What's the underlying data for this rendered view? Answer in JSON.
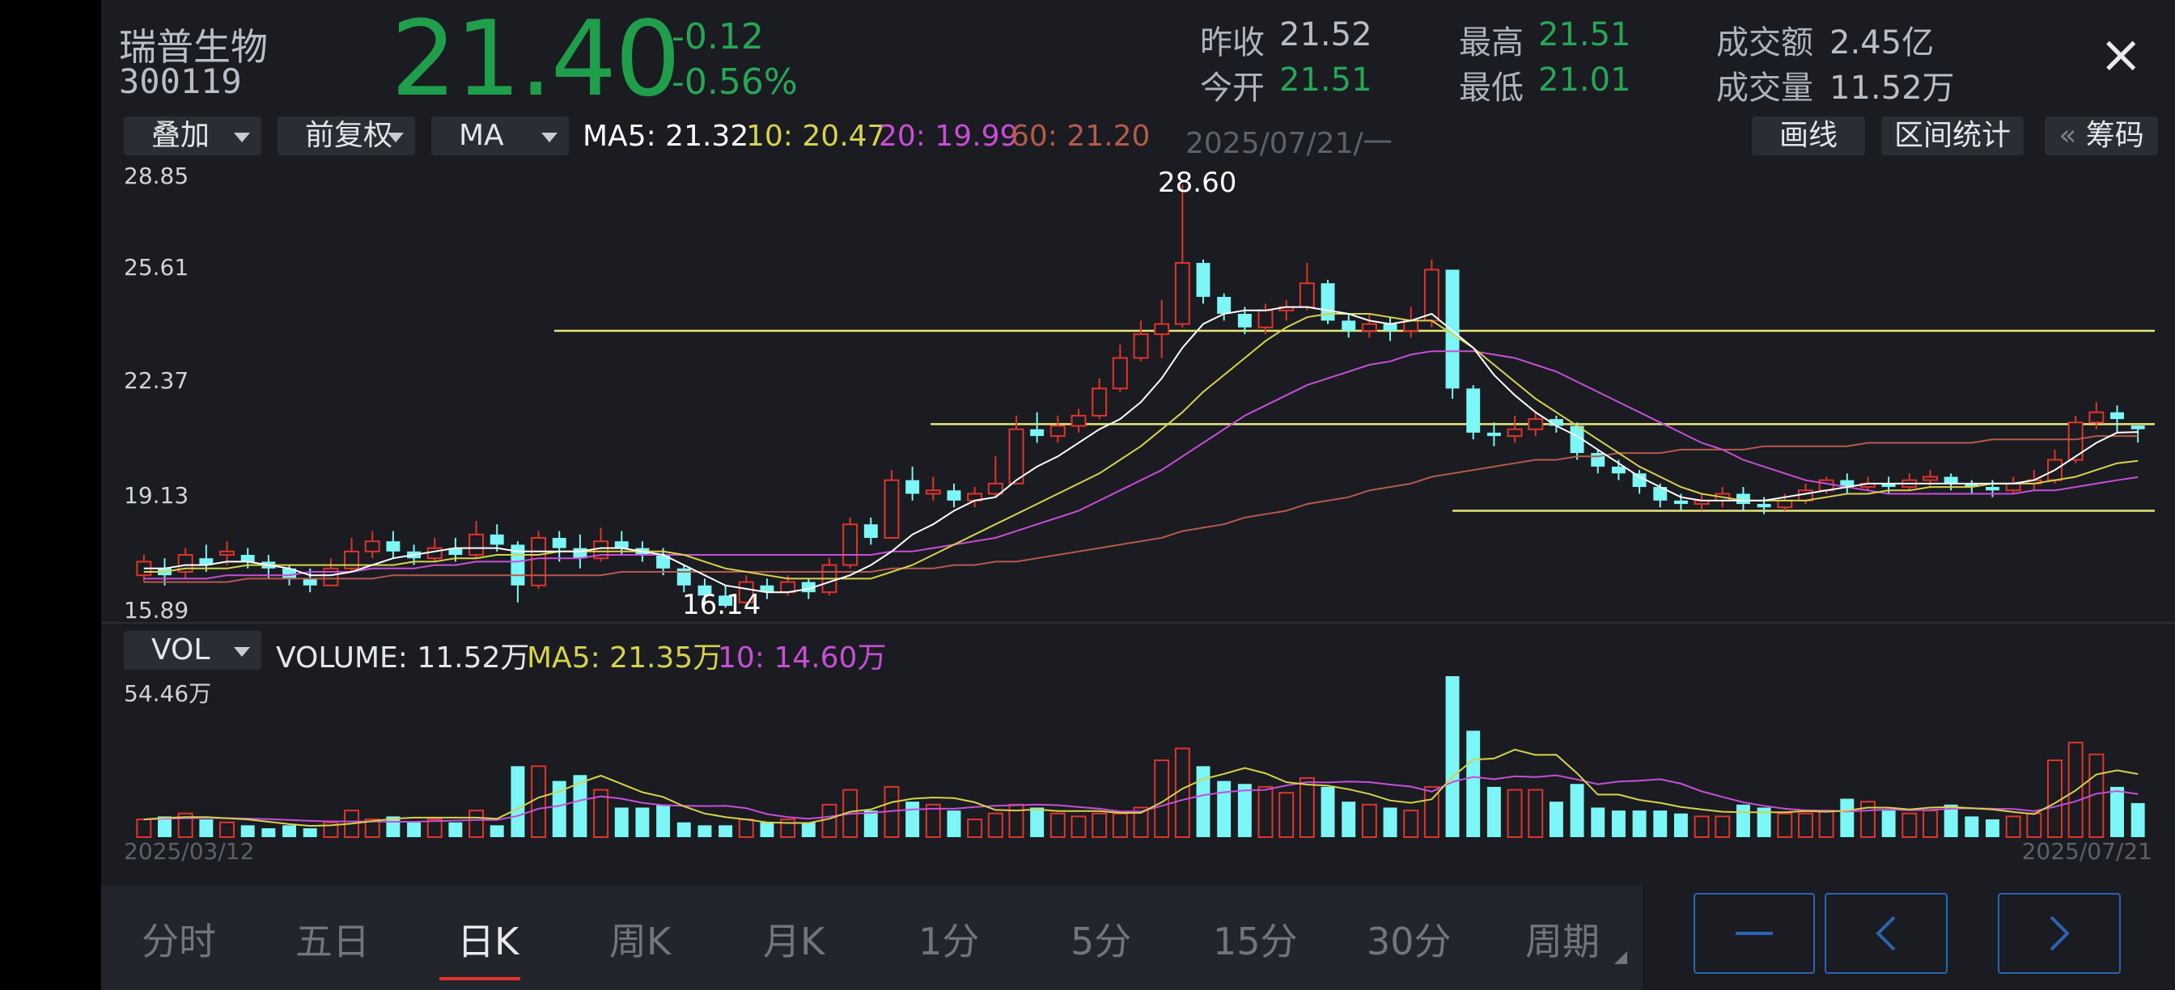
{
  "header": {
    "stock_name": "瑞普生物",
    "stock_code": "300119",
    "price": "21.40",
    "change": "-0.12",
    "change_pct": "-0.56%",
    "stats": [
      {
        "key": "昨收",
        "value": "21.52",
        "color": "plain"
      },
      {
        "key": "今开",
        "value": "21.51",
        "color": "green"
      },
      {
        "key": "最高",
        "value": "21.51",
        "color": "green"
      },
      {
        "key": "最低",
        "value": "21.01",
        "color": "green"
      },
      {
        "key": "成交额",
        "value": "2.45亿",
        "color": "plain"
      },
      {
        "key": "成交量",
        "value": "11.52万",
        "color": "plain"
      }
    ],
    "close_icon": "×"
  },
  "toolbar": {
    "overlay": "叠加",
    "adjust": "前复权",
    "indicator": "MA",
    "ma5": "MA5: 21.32",
    "ma10": "10: 20.47",
    "ma20": "20: 19.99",
    "ma60": "60: 21.20",
    "date": "2025/07/21/一",
    "draw_line": "画线",
    "range_stats": "区间统计",
    "chips_arrow": "«",
    "chips": "筹码"
  },
  "price_axis": [
    "28.85",
    "25.61",
    "22.37",
    "19.13",
    "15.89"
  ],
  "annotations": {
    "high": "28.60",
    "low": "16.14"
  },
  "volume_bar": {
    "indicator": "VOL",
    "volume": "VOLUME: 11.52万",
    "ma5": "MA5: 21.35万",
    "ma10": "10: 14.60万",
    "axis_max": "54.46万"
  },
  "dates": {
    "start": "2025/03/12",
    "end": "2025/07/21"
  },
  "tabs": [
    "分时",
    "五日",
    "日K",
    "周K",
    "月K",
    "1分",
    "5分",
    "15分",
    "30分",
    "周期"
  ],
  "active_tab": 2,
  "nav_buttons": [
    "minus-button",
    "prev-button",
    "next-button"
  ],
  "colors": {
    "up": "#e0342b",
    "down": "#7cf6f6",
    "ma5": "#ffffff",
    "ma10": "#d8d24a",
    "ma20": "#c84ed8",
    "ma60": "#b65a4a",
    "price_green": "#1f9f4b",
    "level_line": "#e8e87a"
  },
  "chart_data": {
    "type": "candlestick",
    "ylim": [
      15.89,
      28.85
    ],
    "volume_ylim": [
      0,
      54.46
    ],
    "volume_unit": "万",
    "candles": [
      {
        "o": 17.1,
        "c": 17.5,
        "h": 17.7,
        "l": 16.9,
        "v": 6
      },
      {
        "o": 17.3,
        "c": 17.1,
        "h": 17.6,
        "l": 16.8,
        "v": 7
      },
      {
        "o": 17.2,
        "c": 17.7,
        "h": 17.9,
        "l": 17.0,
        "v": 8
      },
      {
        "o": 17.6,
        "c": 17.4,
        "h": 18.0,
        "l": 17.2,
        "v": 6
      },
      {
        "o": 17.7,
        "c": 17.8,
        "h": 18.1,
        "l": 17.4,
        "v": 5
      },
      {
        "o": 17.7,
        "c": 17.5,
        "h": 17.9,
        "l": 17.3,
        "v": 4
      },
      {
        "o": 17.5,
        "c": 17.3,
        "h": 17.7,
        "l": 17.0,
        "v": 3
      },
      {
        "o": 17.3,
        "c": 17.0,
        "h": 17.4,
        "l": 16.8,
        "v": 4
      },
      {
        "o": 17.0,
        "c": 16.8,
        "h": 17.3,
        "l": 16.6,
        "v": 3
      },
      {
        "o": 16.8,
        "c": 17.3,
        "h": 17.6,
        "l": 16.8,
        "v": 5
      },
      {
        "o": 17.3,
        "c": 17.8,
        "h": 18.2,
        "l": 17.2,
        "v": 9
      },
      {
        "o": 17.8,
        "c": 18.1,
        "h": 18.4,
        "l": 17.6,
        "v": 6
      },
      {
        "o": 18.1,
        "c": 17.8,
        "h": 18.4,
        "l": 17.6,
        "v": 7
      },
      {
        "o": 17.8,
        "c": 17.6,
        "h": 18.0,
        "l": 17.4,
        "v": 5
      },
      {
        "o": 17.6,
        "c": 17.9,
        "h": 18.2,
        "l": 17.5,
        "v": 6
      },
      {
        "o": 17.9,
        "c": 17.7,
        "h": 18.2,
        "l": 17.5,
        "v": 5
      },
      {
        "o": 17.7,
        "c": 18.3,
        "h": 18.7,
        "l": 17.6,
        "v": 9
      },
      {
        "o": 18.3,
        "c": 18.0,
        "h": 18.6,
        "l": 17.8,
        "v": 4
      },
      {
        "o": 18.0,
        "c": 16.8,
        "h": 18.1,
        "l": 16.3,
        "v": 24
      },
      {
        "o": 16.8,
        "c": 18.2,
        "h": 18.4,
        "l": 16.7,
        "v": 24
      },
      {
        "o": 18.2,
        "c": 17.9,
        "h": 18.4,
        "l": 17.5,
        "v": 19
      },
      {
        "o": 17.9,
        "c": 17.6,
        "h": 18.3,
        "l": 17.3,
        "v": 21
      },
      {
        "o": 17.6,
        "c": 18.1,
        "h": 18.5,
        "l": 17.5,
        "v": 16
      },
      {
        "o": 18.1,
        "c": 17.9,
        "h": 18.4,
        "l": 17.7,
        "v": 10
      },
      {
        "o": 17.9,
        "c": 17.7,
        "h": 18.1,
        "l": 17.5,
        "v": 10
      },
      {
        "o": 17.7,
        "c": 17.3,
        "h": 17.9,
        "l": 17.1,
        "v": 11
      },
      {
        "o": 17.3,
        "c": 16.8,
        "h": 17.4,
        "l": 16.6,
        "v": 5
      },
      {
        "o": 16.8,
        "c": 16.5,
        "h": 17.0,
        "l": 16.3,
        "v": 4
      },
      {
        "o": 16.5,
        "c": 16.2,
        "h": 16.8,
        "l": 16.14,
        "v": 4
      },
      {
        "o": 16.3,
        "c": 16.9,
        "h": 17.1,
        "l": 16.2,
        "v": 6
      },
      {
        "o": 16.8,
        "c": 16.6,
        "h": 17.0,
        "l": 16.4,
        "v": 5
      },
      {
        "o": 16.6,
        "c": 16.9,
        "h": 17.1,
        "l": 16.5,
        "v": 6
      },
      {
        "o": 16.9,
        "c": 16.6,
        "h": 17.0,
        "l": 16.4,
        "v": 5
      },
      {
        "o": 16.6,
        "c": 17.4,
        "h": 17.6,
        "l": 16.5,
        "v": 11
      },
      {
        "o": 17.4,
        "c": 18.6,
        "h": 18.8,
        "l": 17.3,
        "v": 16
      },
      {
        "o": 18.6,
        "c": 18.2,
        "h": 18.8,
        "l": 18.0,
        "v": 9
      },
      {
        "o": 18.2,
        "c": 19.9,
        "h": 20.2,
        "l": 18.2,
        "v": 17
      },
      {
        "o": 19.9,
        "c": 19.5,
        "h": 20.3,
        "l": 19.3,
        "v": 12
      },
      {
        "o": 19.5,
        "c": 19.6,
        "h": 20.0,
        "l": 19.3,
        "v": 11
      },
      {
        "o": 19.6,
        "c": 19.3,
        "h": 19.8,
        "l": 19.1,
        "v": 9
      },
      {
        "o": 19.3,
        "c": 19.5,
        "h": 19.7,
        "l": 19.1,
        "v": 6
      },
      {
        "o": 19.5,
        "c": 19.8,
        "h": 20.6,
        "l": 19.4,
        "v": 8
      },
      {
        "o": 19.8,
        "c": 21.4,
        "h": 21.8,
        "l": 19.8,
        "v": 11
      },
      {
        "o": 21.4,
        "c": 21.2,
        "h": 21.9,
        "l": 21.0,
        "v": 10
      },
      {
        "o": 21.2,
        "c": 21.5,
        "h": 21.8,
        "l": 21.0,
        "v": 8
      },
      {
        "o": 21.5,
        "c": 21.8,
        "h": 22.0,
        "l": 21.3,
        "v": 7
      },
      {
        "o": 21.8,
        "c": 22.6,
        "h": 22.9,
        "l": 21.7,
        "v": 8
      },
      {
        "o": 22.6,
        "c": 23.5,
        "h": 23.9,
        "l": 22.5,
        "v": 8
      },
      {
        "o": 23.5,
        "c": 24.2,
        "h": 24.6,
        "l": 23.4,
        "v": 10
      },
      {
        "o": 24.2,
        "c": 24.5,
        "h": 25.2,
        "l": 23.5,
        "v": 26
      },
      {
        "o": 24.5,
        "c": 26.3,
        "h": 28.6,
        "l": 24.4,
        "v": 30
      },
      {
        "o": 26.3,
        "c": 25.3,
        "h": 26.4,
        "l": 25.1,
        "v": 24
      },
      {
        "o": 25.3,
        "c": 24.8,
        "h": 25.4,
        "l": 24.6,
        "v": 19
      },
      {
        "o": 24.8,
        "c": 24.4,
        "h": 25.0,
        "l": 24.2,
        "v": 18
      },
      {
        "o": 24.4,
        "c": 24.9,
        "h": 25.1,
        "l": 24.2,
        "v": 17
      },
      {
        "o": 24.9,
        "c": 25.0,
        "h": 25.2,
        "l": 24.6,
        "v": 15
      },
      {
        "o": 25.0,
        "c": 25.7,
        "h": 26.3,
        "l": 24.9,
        "v": 20
      },
      {
        "o": 25.7,
        "c": 24.6,
        "h": 25.8,
        "l": 24.5,
        "v": 17
      },
      {
        "o": 24.6,
        "c": 24.3,
        "h": 24.8,
        "l": 24.1,
        "v": 12
      },
      {
        "o": 24.3,
        "c": 24.5,
        "h": 24.8,
        "l": 24.1,
        "v": 11
      },
      {
        "o": 24.5,
        "c": 24.3,
        "h": 24.7,
        "l": 24.0,
        "v": 10
      },
      {
        "o": 24.3,
        "c": 24.6,
        "h": 25.0,
        "l": 24.1,
        "v": 9
      },
      {
        "o": 24.6,
        "c": 26.1,
        "h": 26.4,
        "l": 24.4,
        "v": 17
      },
      {
        "o": 26.1,
        "c": 22.6,
        "h": 26.1,
        "l": 22.3,
        "v": 54.46
      },
      {
        "o": 22.6,
        "c": 21.3,
        "h": 22.7,
        "l": 21.1,
        "v": 36
      },
      {
        "o": 21.3,
        "c": 21.2,
        "h": 21.6,
        "l": 20.9,
        "v": 17
      },
      {
        "o": 21.2,
        "c": 21.4,
        "h": 21.8,
        "l": 21.0,
        "v": 16
      },
      {
        "o": 21.4,
        "c": 21.7,
        "h": 21.9,
        "l": 21.2,
        "v": 16
      },
      {
        "o": 21.7,
        "c": 21.5,
        "h": 21.8,
        "l": 21.3,
        "v": 12
      },
      {
        "o": 21.5,
        "c": 20.7,
        "h": 21.6,
        "l": 20.5,
        "v": 18
      },
      {
        "o": 20.7,
        "c": 20.3,
        "h": 20.8,
        "l": 20.1,
        "v": 10
      },
      {
        "o": 20.3,
        "c": 20.1,
        "h": 20.5,
        "l": 19.9,
        "v": 9
      },
      {
        "o": 20.1,
        "c": 19.7,
        "h": 20.2,
        "l": 19.5,
        "v": 9
      },
      {
        "o": 19.7,
        "c": 19.3,
        "h": 19.8,
        "l": 19.1,
        "v": 9
      },
      {
        "o": 19.3,
        "c": 19.2,
        "h": 19.5,
        "l": 19.0,
        "v": 8
      },
      {
        "o": 19.2,
        "c": 19.3,
        "h": 19.5,
        "l": 19.0,
        "v": 7
      },
      {
        "o": 19.3,
        "c": 19.5,
        "h": 19.7,
        "l": 19.1,
        "v": 7
      },
      {
        "o": 19.5,
        "c": 19.2,
        "h": 19.7,
        "l": 19.0,
        "v": 11
      },
      {
        "o": 19.2,
        "c": 19.1,
        "h": 19.4,
        "l": 18.9,
        "v": 10
      },
      {
        "o": 19.1,
        "c": 19.3,
        "h": 19.5,
        "l": 19.0,
        "v": 8
      },
      {
        "o": 19.3,
        "c": 19.6,
        "h": 19.8,
        "l": 19.2,
        "v": 8
      },
      {
        "o": 19.6,
        "c": 19.9,
        "h": 20.0,
        "l": 19.5,
        "v": 9
      },
      {
        "o": 19.9,
        "c": 19.7,
        "h": 20.1,
        "l": 19.5,
        "v": 13
      },
      {
        "o": 19.7,
        "c": 19.8,
        "h": 20.0,
        "l": 19.6,
        "v": 12
      },
      {
        "o": 19.8,
        "c": 19.7,
        "h": 20.0,
        "l": 19.5,
        "v": 9
      },
      {
        "o": 19.7,
        "c": 19.9,
        "h": 20.1,
        "l": 19.6,
        "v": 8
      },
      {
        "o": 19.9,
        "c": 20.0,
        "h": 20.2,
        "l": 19.7,
        "v": 9
      },
      {
        "o": 20.0,
        "c": 19.8,
        "h": 20.1,
        "l": 19.6,
        "v": 11
      },
      {
        "o": 19.8,
        "c": 19.7,
        "h": 19.9,
        "l": 19.5,
        "v": 7
      },
      {
        "o": 19.7,
        "c": 19.6,
        "h": 19.9,
        "l": 19.4,
        "v": 6
      },
      {
        "o": 19.6,
        "c": 19.8,
        "h": 20.0,
        "l": 19.5,
        "v": 7
      },
      {
        "o": 19.8,
        "c": 19.9,
        "h": 20.2,
        "l": 19.6,
        "v": 8
      },
      {
        "o": 19.9,
        "c": 20.5,
        "h": 20.8,
        "l": 19.8,
        "v": 26
      },
      {
        "o": 20.5,
        "c": 21.6,
        "h": 21.8,
        "l": 20.4,
        "v": 32
      },
      {
        "o": 21.6,
        "c": 21.9,
        "h": 22.2,
        "l": 21.4,
        "v": 28
      },
      {
        "o": 21.9,
        "c": 21.7,
        "h": 22.1,
        "l": 21.3,
        "v": 17
      },
      {
        "o": 21.51,
        "c": 21.4,
        "h": 21.51,
        "l": 21.01,
        "v": 11.52
      }
    ],
    "ma5": [
      17.3,
      17.3,
      17.4,
      17.4,
      17.5,
      17.5,
      17.4,
      17.3,
      17.1,
      17.1,
      17.2,
      17.4,
      17.6,
      17.7,
      17.8,
      17.9,
      17.9,
      17.9,
      17.8,
      17.8,
      17.8,
      17.8,
      17.9,
      17.9,
      17.8,
      17.7,
      17.4,
      17.1,
      16.8,
      16.7,
      16.6,
      16.6,
      16.7,
      16.9,
      17.1,
      17.4,
      17.8,
      18.3,
      18.6,
      19.0,
      19.3,
      19.4,
      19.9,
      20.3,
      20.6,
      21.0,
      21.4,
      21.7,
      22.2,
      22.9,
      23.8,
      24.5,
      24.8,
      24.9,
      24.9,
      25.0,
      25.0,
      24.9,
      24.8,
      24.6,
      24.5,
      24.6,
      24.8,
      24.3,
      23.8,
      23.0,
      22.4,
      21.9,
      21.5,
      21.2,
      20.8,
      20.4,
      20.0,
      19.7,
      19.4,
      19.3,
      19.3,
      19.3,
      19.3,
      19.4,
      19.5,
      19.6,
      19.7,
      19.8,
      19.8,
      19.8,
      19.8,
      19.8,
      19.8,
      19.8,
      19.8,
      19.9,
      20.2,
      20.6,
      21.0,
      21.3,
      21.32
    ],
    "ma10": [
      17.2,
      17.2,
      17.3,
      17.3,
      17.3,
      17.4,
      17.4,
      17.4,
      17.4,
      17.4,
      17.4,
      17.4,
      17.4,
      17.5,
      17.5,
      17.6,
      17.6,
      17.7,
      17.7,
      17.7,
      17.8,
      17.8,
      17.8,
      17.8,
      17.8,
      17.8,
      17.7,
      17.5,
      17.3,
      17.2,
      17.1,
      17.0,
      17.0,
      17.0,
      17.0,
      17.0,
      17.2,
      17.4,
      17.7,
      18.0,
      18.3,
      18.6,
      18.9,
      19.2,
      19.5,
      19.8,
      20.1,
      20.5,
      20.9,
      21.4,
      21.9,
      22.5,
      23.0,
      23.5,
      24.0,
      24.4,
      24.7,
      24.8,
      24.8,
      24.8,
      24.7,
      24.6,
      24.6,
      24.2,
      23.8,
      23.3,
      22.8,
      22.3,
      21.9,
      21.5,
      21.1,
      20.7,
      20.3,
      20.0,
      19.7,
      19.5,
      19.4,
      19.3,
      19.3,
      19.3,
      19.3,
      19.4,
      19.5,
      19.5,
      19.6,
      19.6,
      19.7,
      19.7,
      19.7,
      19.8,
      19.8,
      19.8,
      19.9,
      20.0,
      20.2,
      20.4,
      20.47
    ],
    "ma20": [
      17.0,
      17.0,
      17.0,
      17.0,
      17.1,
      17.1,
      17.1,
      17.1,
      17.2,
      17.2,
      17.2,
      17.3,
      17.3,
      17.3,
      17.4,
      17.4,
      17.5,
      17.5,
      17.5,
      17.6,
      17.6,
      17.6,
      17.7,
      17.7,
      17.7,
      17.7,
      17.7,
      17.7,
      17.7,
      17.7,
      17.7,
      17.7,
      17.7,
      17.7,
      17.7,
      17.7,
      17.8,
      17.8,
      17.9,
      18.0,
      18.1,
      18.2,
      18.4,
      18.6,
      18.8,
      19.0,
      19.3,
      19.6,
      19.9,
      20.2,
      20.6,
      21.0,
      21.4,
      21.8,
      22.1,
      22.4,
      22.7,
      22.9,
      23.1,
      23.3,
      23.4,
      23.6,
      23.7,
      23.7,
      23.7,
      23.6,
      23.5,
      23.3,
      23.1,
      22.8,
      22.5,
      22.2,
      21.9,
      21.6,
      21.3,
      21.0,
      20.8,
      20.5,
      20.3,
      20.1,
      19.9,
      19.8,
      19.7,
      19.6,
      19.5,
      19.5,
      19.5,
      19.5,
      19.5,
      19.5,
      19.5,
      19.6,
      19.6,
      19.7,
      19.8,
      19.9,
      19.99
    ],
    "ma60": [
      16.9,
      16.9,
      16.9,
      16.9,
      16.9,
      17.0,
      17.0,
      17.0,
      17.0,
      17.0,
      17.0,
      17.0,
      17.1,
      17.1,
      17.1,
      17.1,
      17.1,
      17.1,
      17.1,
      17.1,
      17.1,
      17.1,
      17.1,
      17.2,
      17.2,
      17.2,
      17.2,
      17.2,
      17.2,
      17.2,
      17.2,
      17.2,
      17.2,
      17.2,
      17.2,
      17.2,
      17.3,
      17.3,
      17.3,
      17.4,
      17.4,
      17.5,
      17.5,
      17.6,
      17.7,
      17.8,
      17.9,
      18.0,
      18.1,
      18.2,
      18.4,
      18.5,
      18.6,
      18.8,
      18.9,
      19.0,
      19.2,
      19.3,
      19.4,
      19.6,
      19.7,
      19.8,
      20.0,
      20.1,
      20.2,
      20.3,
      20.4,
      20.5,
      20.5,
      20.6,
      20.6,
      20.7,
      20.7,
      20.7,
      20.8,
      20.8,
      20.8,
      20.8,
      20.9,
      20.9,
      20.9,
      20.9,
      20.9,
      21.0,
      21.0,
      21.0,
      21.0,
      21.0,
      21.0,
      21.1,
      21.1,
      21.1,
      21.1,
      21.1,
      21.2,
      21.2,
      21.2
    ],
    "vol_ma5": [
      6,
      6.5,
      6.8,
      6.8,
      6.4,
      6,
      5.2,
      4.4,
      3.8,
      4,
      4.6,
      5.4,
      6.2,
      6.6,
      6.6,
      6.6,
      6.6,
      6.2,
      9.6,
      13.4,
      15.4,
      18.4,
      20.8,
      18,
      15.2,
      13.6,
      10.4,
      8,
      6.8,
      6,
      5,
      4.8,
      4.8,
      6.2,
      8.6,
      9.4,
      11.8,
      13,
      13.4,
      13.2,
      11.8,
      9.2,
      9,
      9.4,
      8.8,
      8.8,
      8.8,
      8.2,
      8.2,
      11.8,
      16.4,
      19.6,
      21.4,
      23.4,
      21.6,
      18.6,
      17.8,
      17.4,
      16.2,
      14.6,
      12.4,
      11.6,
      12.8,
      20.4,
      26.2,
      26.6,
      29.6,
      27.8,
      27.9,
      21.6,
      14.4,
      14.4,
      12.6,
      11.6,
      10.2,
      9.4,
      8.6,
      8.4,
      8.4,
      8.4,
      8.8,
      8.6,
      9,
      10,
      10,
      9.4,
      10,
      10.2,
      9.8,
      9.4,
      8.5,
      7.8,
      11.5,
      15.8,
      21.2,
      22.6,
      21.35
    ],
    "vol_ma10": [
      6,
      6.2,
      6.4,
      6.5,
      6.4,
      6.3,
      6.1,
      5.8,
      5.5,
      5.3,
      5.3,
      5.3,
      5.2,
      5.2,
      5.4,
      5.6,
      5.8,
      5.8,
      7.2,
      9.6,
      10.6,
      12.4,
      13.8,
      13,
      11.6,
      10.8,
      10.6,
      10.5,
      10.6,
      9.8,
      7.8,
      6.8,
      6.2,
      6.9,
      7.9,
      8.2,
      8.8,
      9.4,
      9.6,
      9.6,
      10.2,
      10.6,
      10.8,
      11,
      10.8,
      10.2,
      9.6,
      8.7,
      8.7,
      10.6,
      12.6,
      14.2,
      15.2,
      15.8,
      16,
      17.5,
      18.6,
      18.5,
      18.8,
      18.6,
      17.8,
      17.1,
      15.4,
      18.7,
      20.4,
      19.6,
      20.6,
      20.3,
      20.9,
      19.5,
      17.9,
      18.8,
      19.1,
      19.6,
      18.1,
      15.5,
      13.6,
      11.8,
      10.6,
      9.6,
      9.1,
      9,
      8.7,
      9,
      9.4,
      9.1,
      9.2,
      9.6,
      9.8,
      9.6,
      9.5,
      8.8,
      10.3,
      12.1,
      14.7,
      15.6,
      14.6
    ]
  }
}
